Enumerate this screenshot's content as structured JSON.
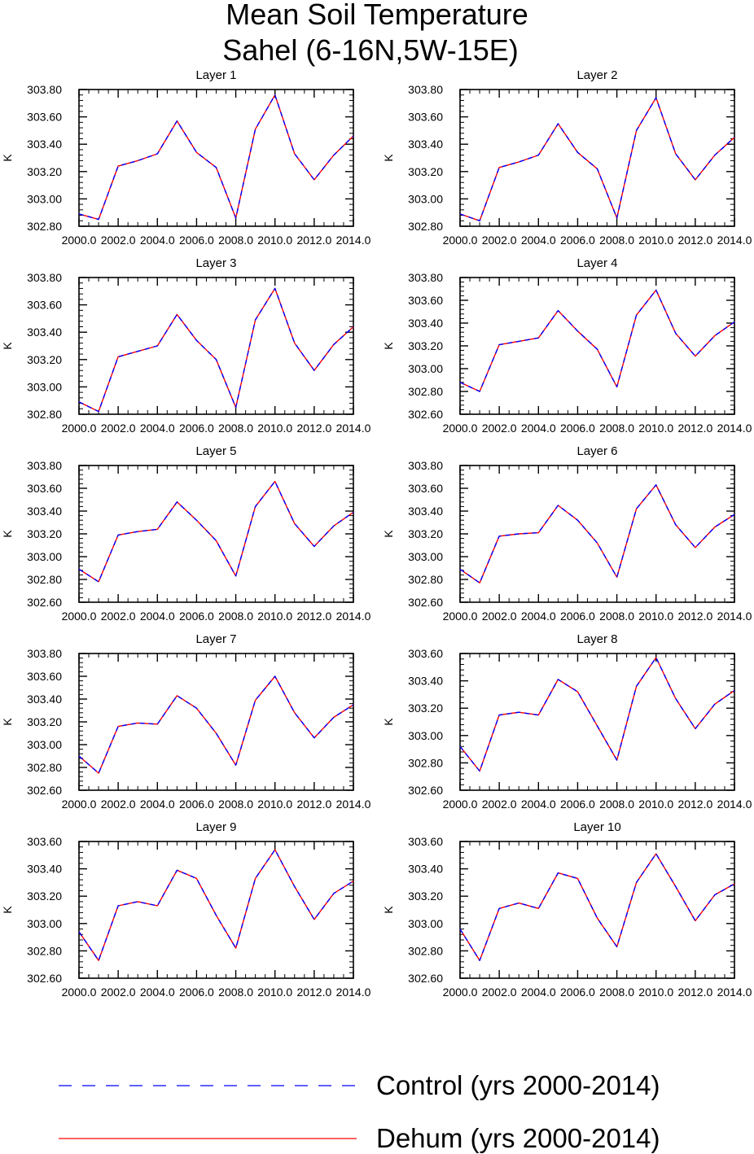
{
  "title_line1": "Mean Soil Temperature",
  "title_line2": "Sahel (6-16N,5W-15E)",
  "colors": {
    "control": "#0000ff",
    "dehum": "#ff0000",
    "axis": "#000000"
  },
  "legend": {
    "entries": [
      {
        "label": "Control (yrs 2000-2014)",
        "color": "#0000ff",
        "dash": "dashed"
      },
      {
        "label": "Dehum (yrs 2000-2014)",
        "color": "#ff0000",
        "dash": "solid"
      }
    ]
  },
  "chart_data": [
    {
      "type": "line",
      "title": "Layer 1",
      "ylabel": "K",
      "xlim": [
        2000,
        2014
      ],
      "ylim": [
        302.8,
        303.8
      ],
      "xticks": [
        2000,
        2002,
        2004,
        2006,
        2008,
        2010,
        2012,
        2014
      ],
      "xticklabels": [
        "2000.0",
        "2002.0",
        "2004.0",
        "2006.0",
        "2008.0",
        "2010.0",
        "2012.0",
        "2014.0"
      ],
      "yticks": [
        302.8,
        303.0,
        303.2,
        303.4,
        303.6,
        303.8
      ],
      "yticklabels": [
        "302.80",
        "303.00",
        "303.20",
        "303.40",
        "303.60",
        "303.80"
      ],
      "x": [
        2000,
        2001,
        2002,
        2003,
        2004,
        2005,
        2006,
        2007,
        2008,
        2009,
        2010,
        2011,
        2012,
        2013,
        2014
      ],
      "series": [
        {
          "name": "Control (yrs 2000-2014)",
          "values": [
            302.89,
            302.85,
            303.24,
            303.28,
            303.33,
            303.57,
            303.34,
            303.23,
            302.86,
            303.51,
            303.76,
            303.33,
            303.14,
            303.32,
            303.46
          ]
        },
        {
          "name": "Dehum (yrs 2000-2014)",
          "values": [
            302.89,
            302.85,
            303.24,
            303.28,
            303.33,
            303.57,
            303.34,
            303.23,
            302.86,
            303.51,
            303.76,
            303.33,
            303.14,
            303.32,
            303.46
          ]
        }
      ]
    },
    {
      "type": "line",
      "title": "Layer 2",
      "ylabel": "K",
      "xlim": [
        2000,
        2014
      ],
      "ylim": [
        302.8,
        303.8
      ],
      "xticks": [
        2000,
        2002,
        2004,
        2006,
        2008,
        2010,
        2012,
        2014
      ],
      "xticklabels": [
        "2000.0",
        "2002.0",
        "2004.0",
        "2006.0",
        "2008.0",
        "2010.0",
        "2012.0",
        "2014.0"
      ],
      "yticks": [
        302.8,
        303.0,
        303.2,
        303.4,
        303.6,
        303.8
      ],
      "yticklabels": [
        "302.80",
        "303.00",
        "303.20",
        "303.40",
        "303.60",
        "303.80"
      ],
      "x": [
        2000,
        2001,
        2002,
        2003,
        2004,
        2005,
        2006,
        2007,
        2008,
        2009,
        2010,
        2011,
        2012,
        2013,
        2014
      ],
      "series": [
        {
          "name": "Control (yrs 2000-2014)",
          "values": [
            302.89,
            302.84,
            303.23,
            303.27,
            303.32,
            303.55,
            303.34,
            303.22,
            302.86,
            303.5,
            303.74,
            303.33,
            303.14,
            303.32,
            303.45
          ]
        },
        {
          "name": "Dehum (yrs 2000-2014)",
          "values": [
            302.89,
            302.84,
            303.23,
            303.27,
            303.32,
            303.55,
            303.34,
            303.22,
            302.86,
            303.5,
            303.74,
            303.33,
            303.14,
            303.32,
            303.45
          ]
        }
      ]
    },
    {
      "type": "line",
      "title": "Layer 3",
      "ylabel": "K",
      "xlim": [
        2000,
        2014
      ],
      "ylim": [
        302.8,
        303.8
      ],
      "xticks": [
        2000,
        2002,
        2004,
        2006,
        2008,
        2010,
        2012,
        2014
      ],
      "xticklabels": [
        "2000.0",
        "2002.0",
        "2004.0",
        "2006.0",
        "2008.0",
        "2010.0",
        "2012.0",
        "2014.0"
      ],
      "yticks": [
        302.8,
        303.0,
        303.2,
        303.4,
        303.6,
        303.8
      ],
      "yticklabels": [
        "302.80",
        "303.00",
        "303.20",
        "303.40",
        "303.60",
        "303.80"
      ],
      "x": [
        2000,
        2001,
        2002,
        2003,
        2004,
        2005,
        2006,
        2007,
        2008,
        2009,
        2010,
        2011,
        2012,
        2013,
        2014
      ],
      "series": [
        {
          "name": "Control (yrs 2000-2014)",
          "values": [
            302.89,
            302.82,
            303.22,
            303.26,
            303.3,
            303.53,
            303.34,
            303.2,
            302.85,
            303.49,
            303.72,
            303.32,
            303.12,
            303.31,
            303.44
          ]
        },
        {
          "name": "Dehum (yrs 2000-2014)",
          "values": [
            302.89,
            302.82,
            303.22,
            303.26,
            303.3,
            303.53,
            303.34,
            303.2,
            302.85,
            303.49,
            303.72,
            303.32,
            303.12,
            303.31,
            303.44
          ]
        }
      ]
    },
    {
      "type": "line",
      "title": "Layer 4",
      "ylabel": "K",
      "xlim": [
        2000,
        2014
      ],
      "ylim": [
        302.6,
        303.8
      ],
      "xticks": [
        2000,
        2002,
        2004,
        2006,
        2008,
        2010,
        2012,
        2014
      ],
      "xticklabels": [
        "2000.0",
        "2002.0",
        "2004.0",
        "2006.0",
        "2008.0",
        "2010.0",
        "2012.0",
        "2014.0"
      ],
      "yticks": [
        302.6,
        302.8,
        303.0,
        303.2,
        303.4,
        303.6,
        303.8
      ],
      "yticklabels": [
        "302.60",
        "302.80",
        "303.00",
        "303.20",
        "303.40",
        "303.60",
        "303.80"
      ],
      "x": [
        2000,
        2001,
        2002,
        2003,
        2004,
        2005,
        2006,
        2007,
        2008,
        2009,
        2010,
        2011,
        2012,
        2013,
        2014
      ],
      "series": [
        {
          "name": "Control (yrs 2000-2014)",
          "values": [
            302.88,
            302.8,
            303.21,
            303.24,
            303.27,
            303.51,
            303.33,
            303.17,
            302.84,
            303.47,
            303.69,
            303.31,
            303.11,
            303.29,
            303.41
          ]
        },
        {
          "name": "Dehum (yrs 2000-2014)",
          "values": [
            302.88,
            302.8,
            303.21,
            303.24,
            303.27,
            303.51,
            303.33,
            303.17,
            302.84,
            303.47,
            303.69,
            303.31,
            303.11,
            303.29,
            303.41
          ]
        }
      ]
    },
    {
      "type": "line",
      "title": "Layer 5",
      "ylabel": "K",
      "xlim": [
        2000,
        2014
      ],
      "ylim": [
        302.6,
        303.8
      ],
      "xticks": [
        2000,
        2002,
        2004,
        2006,
        2008,
        2010,
        2012,
        2014
      ],
      "xticklabels": [
        "2000.0",
        "2002.0",
        "2004.0",
        "2006.0",
        "2008.0",
        "2010.0",
        "2012.0",
        "2014.0"
      ],
      "yticks": [
        302.6,
        302.8,
        303.0,
        303.2,
        303.4,
        303.6,
        303.8
      ],
      "yticklabels": [
        "302.60",
        "302.80",
        "303.00",
        "303.20",
        "303.40",
        "303.60",
        "303.80"
      ],
      "x": [
        2000,
        2001,
        2002,
        2003,
        2004,
        2005,
        2006,
        2007,
        2008,
        2009,
        2010,
        2011,
        2012,
        2013,
        2014
      ],
      "series": [
        {
          "name": "Control (yrs 2000-2014)",
          "values": [
            302.89,
            302.78,
            303.19,
            303.22,
            303.24,
            303.48,
            303.32,
            303.14,
            302.83,
            303.44,
            303.66,
            303.29,
            303.09,
            303.27,
            303.39
          ]
        },
        {
          "name": "Dehum (yrs 2000-2014)",
          "values": [
            302.89,
            302.78,
            303.19,
            303.22,
            303.24,
            303.48,
            303.32,
            303.14,
            302.83,
            303.44,
            303.66,
            303.29,
            303.09,
            303.27,
            303.39
          ]
        }
      ]
    },
    {
      "type": "line",
      "title": "Layer 6",
      "ylabel": "K",
      "xlim": [
        2000,
        2014
      ],
      "ylim": [
        302.6,
        303.8
      ],
      "xticks": [
        2000,
        2002,
        2004,
        2006,
        2008,
        2010,
        2012,
        2014
      ],
      "xticklabels": [
        "2000.0",
        "2002.0",
        "2004.0",
        "2006.0",
        "2008.0",
        "2010.0",
        "2012.0",
        "2014.0"
      ],
      "yticks": [
        302.6,
        302.8,
        303.0,
        303.2,
        303.4,
        303.6,
        303.8
      ],
      "yticklabels": [
        "302.60",
        "302.80",
        "303.00",
        "303.20",
        "303.40",
        "303.60",
        "303.80"
      ],
      "x": [
        2000,
        2001,
        2002,
        2003,
        2004,
        2005,
        2006,
        2007,
        2008,
        2009,
        2010,
        2011,
        2012,
        2013,
        2014
      ],
      "series": [
        {
          "name": "Control (yrs 2000-2014)",
          "values": [
            302.89,
            302.77,
            303.18,
            303.2,
            303.21,
            303.45,
            303.32,
            303.12,
            302.82,
            303.42,
            303.63,
            303.28,
            303.08,
            303.26,
            303.37
          ]
        },
        {
          "name": "Dehum (yrs 2000-2014)",
          "values": [
            302.89,
            302.77,
            303.18,
            303.2,
            303.21,
            303.45,
            303.32,
            303.12,
            302.82,
            303.42,
            303.63,
            303.28,
            303.08,
            303.26,
            303.37
          ]
        }
      ]
    },
    {
      "type": "line",
      "title": "Layer 7",
      "ylabel": "K",
      "xlim": [
        2000,
        2014
      ],
      "ylim": [
        302.6,
        303.8
      ],
      "xticks": [
        2000,
        2002,
        2004,
        2006,
        2008,
        2010,
        2012,
        2014
      ],
      "xticklabels": [
        "2000.0",
        "2002.0",
        "2004.0",
        "2006.0",
        "2008.0",
        "2010.0",
        "2012.0",
        "2014.0"
      ],
      "yticks": [
        302.6,
        302.8,
        303.0,
        303.2,
        303.4,
        303.6,
        303.8
      ],
      "yticklabels": [
        "302.60",
        "302.80",
        "303.00",
        "303.20",
        "303.40",
        "303.60",
        "303.80"
      ],
      "x": [
        2000,
        2001,
        2002,
        2003,
        2004,
        2005,
        2006,
        2007,
        2008,
        2009,
        2010,
        2011,
        2012,
        2013,
        2014
      ],
      "series": [
        {
          "name": "Control (yrs 2000-2014)",
          "values": [
            302.9,
            302.75,
            303.16,
            303.19,
            303.18,
            303.43,
            303.32,
            303.1,
            302.82,
            303.39,
            303.6,
            303.28,
            303.06,
            303.24,
            303.35
          ]
        },
        {
          "name": "Dehum (yrs 2000-2014)",
          "values": [
            302.9,
            302.75,
            303.16,
            303.19,
            303.18,
            303.43,
            303.32,
            303.1,
            302.82,
            303.39,
            303.6,
            303.28,
            303.06,
            303.24,
            303.35
          ]
        }
      ]
    },
    {
      "type": "line",
      "title": "Layer 8",
      "ylabel": "K",
      "xlim": [
        2000,
        2014
      ],
      "ylim": [
        302.6,
        303.6
      ],
      "xticks": [
        2000,
        2002,
        2004,
        2006,
        2008,
        2010,
        2012,
        2014
      ],
      "xticklabels": [
        "2000.0",
        "2002.0",
        "2004.0",
        "2006.0",
        "2008.0",
        "2010.0",
        "2012.0",
        "2014.0"
      ],
      "yticks": [
        302.6,
        302.8,
        303.0,
        303.2,
        303.4,
        303.6
      ],
      "yticklabels": [
        "302.60",
        "302.80",
        "303.00",
        "303.20",
        "303.40",
        "303.60"
      ],
      "x": [
        2000,
        2001,
        2002,
        2003,
        2004,
        2005,
        2006,
        2007,
        2008,
        2009,
        2010,
        2011,
        2012,
        2013,
        2014
      ],
      "series": [
        {
          "name": "Control (yrs 2000-2014)",
          "values": [
            302.92,
            302.74,
            303.15,
            303.17,
            303.15,
            303.41,
            303.32,
            303.07,
            302.82,
            303.36,
            303.57,
            303.27,
            303.05,
            303.23,
            303.33
          ]
        },
        {
          "name": "Dehum (yrs 2000-2014)",
          "values": [
            302.92,
            302.74,
            303.15,
            303.17,
            303.15,
            303.41,
            303.32,
            303.07,
            302.82,
            303.36,
            303.57,
            303.27,
            303.05,
            303.23,
            303.33
          ]
        }
      ]
    },
    {
      "type": "line",
      "title": "Layer 9",
      "ylabel": "K",
      "xlim": [
        2000,
        2014
      ],
      "ylim": [
        302.6,
        303.6
      ],
      "xticks": [
        2000,
        2002,
        2004,
        2006,
        2008,
        2010,
        2012,
        2014
      ],
      "xticklabels": [
        "2000.0",
        "2002.0",
        "2004.0",
        "2006.0",
        "2008.0",
        "2010.0",
        "2012.0",
        "2014.0"
      ],
      "yticks": [
        302.6,
        302.8,
        303.0,
        303.2,
        303.4,
        303.6
      ],
      "yticklabels": [
        "302.60",
        "302.80",
        "303.00",
        "303.20",
        "303.40",
        "303.60"
      ],
      "x": [
        2000,
        2001,
        2002,
        2003,
        2004,
        2005,
        2006,
        2007,
        2008,
        2009,
        2010,
        2011,
        2012,
        2013,
        2014
      ],
      "series": [
        {
          "name": "Control (yrs 2000-2014)",
          "values": [
            302.94,
            302.73,
            303.13,
            303.16,
            303.13,
            303.39,
            303.33,
            303.06,
            302.82,
            303.33,
            303.54,
            303.27,
            303.03,
            303.22,
            303.31
          ]
        },
        {
          "name": "Dehum (yrs 2000-2014)",
          "values": [
            302.94,
            302.73,
            303.13,
            303.16,
            303.13,
            303.39,
            303.33,
            303.06,
            302.82,
            303.33,
            303.54,
            303.27,
            303.03,
            303.22,
            303.31
          ]
        }
      ]
    },
    {
      "type": "line",
      "title": "Layer 10",
      "ylabel": "K",
      "xlim": [
        2000,
        2014
      ],
      "ylim": [
        302.6,
        303.6
      ],
      "xticks": [
        2000,
        2002,
        2004,
        2006,
        2008,
        2010,
        2012,
        2014
      ],
      "xticklabels": [
        "2000.0",
        "2002.0",
        "2004.0",
        "2006.0",
        "2008.0",
        "2010.0",
        "2012.0",
        "2014.0"
      ],
      "yticks": [
        302.6,
        302.8,
        303.0,
        303.2,
        303.4,
        303.6
      ],
      "yticklabels": [
        "302.60",
        "302.80",
        "303.00",
        "303.20",
        "303.40",
        "303.60"
      ],
      "x": [
        2000,
        2001,
        2002,
        2003,
        2004,
        2005,
        2006,
        2007,
        2008,
        2009,
        2010,
        2011,
        2012,
        2013,
        2014
      ],
      "series": [
        {
          "name": "Control (yrs 2000-2014)",
          "values": [
            302.96,
            302.73,
            303.11,
            303.15,
            303.11,
            303.37,
            303.33,
            303.04,
            302.83,
            303.3,
            303.51,
            303.27,
            303.02,
            303.21,
            303.29
          ]
        },
        {
          "name": "Dehum (yrs 2000-2014)",
          "values": [
            302.96,
            302.73,
            303.11,
            303.15,
            303.11,
            303.37,
            303.33,
            303.04,
            302.83,
            303.3,
            303.51,
            303.27,
            303.02,
            303.21,
            303.29
          ]
        }
      ]
    }
  ]
}
